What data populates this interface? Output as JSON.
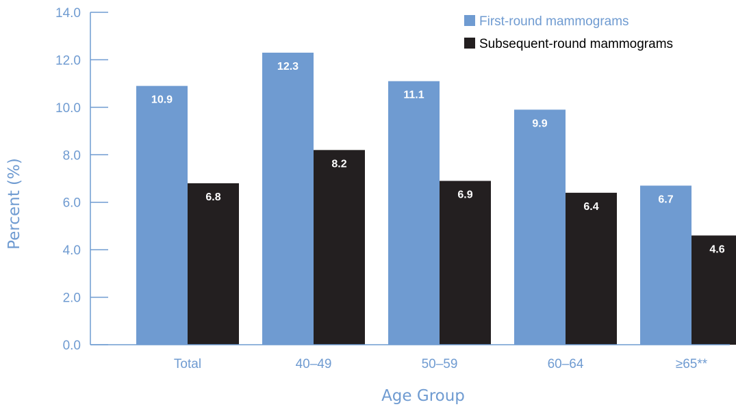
{
  "chart_data": {
    "type": "bar",
    "categories": [
      "Total",
      "40–49",
      "50–59",
      "60–64",
      "≥65**"
    ],
    "series": [
      {
        "name": "First-round mammograms",
        "values": [
          10.9,
          12.3,
          11.1,
          9.9,
          6.7
        ],
        "labels": [
          "10.9",
          "12.3",
          "11.1",
          "9.9",
          "6.7"
        ],
        "color": "#6f9bd1"
      },
      {
        "name": "Subsequent-round mammograms",
        "values": [
          6.8,
          8.2,
          6.9,
          6.4,
          4.6
        ],
        "labels": [
          "6.8",
          "8.2",
          "6.9",
          "6.4",
          "4.6"
        ],
        "color": "#231f20"
      }
    ],
    "xlabel": "Age Group",
    "ylabel": "Percent (%)",
    "ylim": [
      0,
      14
    ],
    "yticks": [
      "0.0",
      "2.0",
      "4.0",
      "6.0",
      "8.0",
      "10.0",
      "12.0",
      "14.0"
    ],
    "grid": false,
    "legend_position": "top-right",
    "axis_color": "#6f9bd1"
  }
}
